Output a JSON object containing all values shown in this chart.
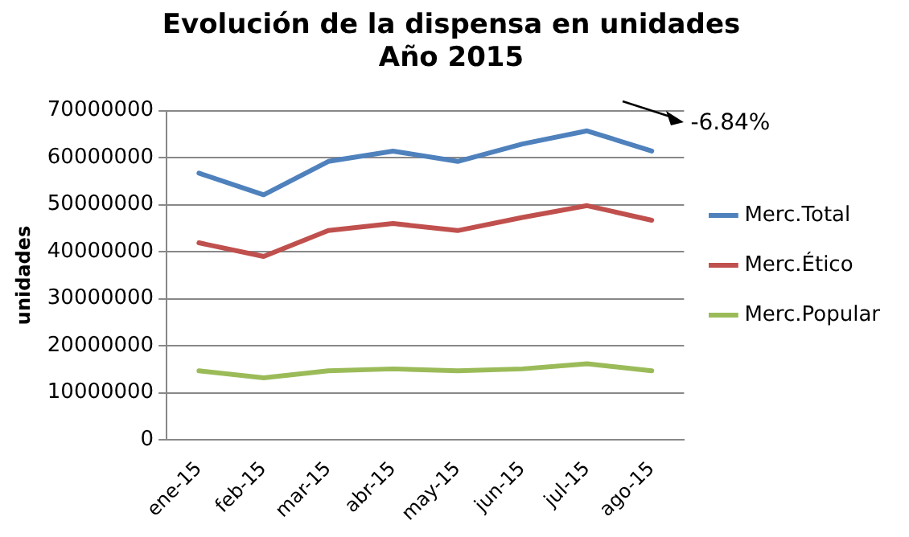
{
  "chart_data": {
    "type": "line",
    "title": "Evolución de la dispensa en unidades\nAño 2015",
    "ylabel": "unidades",
    "categories": [
      "ene-15",
      "feb-15",
      "mar-15",
      "abr-15",
      "may-15",
      "jun-15",
      "jul-15",
      "ago-15"
    ],
    "series": [
      {
        "name": "Merc.Total",
        "color": "#4f81bd",
        "values": [
          56700000,
          52100000,
          59200000,
          61400000,
          59200000,
          62900000,
          65700000,
          61400000
        ]
      },
      {
        "name": "Merc.Ético",
        "color": "#c0504d",
        "values": [
          41900000,
          39000000,
          44500000,
          46000000,
          44500000,
          47300000,
          49800000,
          46700000
        ]
      },
      {
        "name": "Merc.Popular",
        "color": "#9bbb59",
        "values": [
          14700000,
          13200000,
          14700000,
          15100000,
          14700000,
          15100000,
          16200000,
          14700000
        ]
      }
    ],
    "ylim": [
      0,
      70000000
    ],
    "yticks": [
      0,
      10000000,
      20000000,
      30000000,
      40000000,
      50000000,
      60000000,
      70000000
    ],
    "grid": "y",
    "legend": "right",
    "marker": "none",
    "line_style": "solid",
    "annotations": [
      "-6.84%"
    ]
  }
}
